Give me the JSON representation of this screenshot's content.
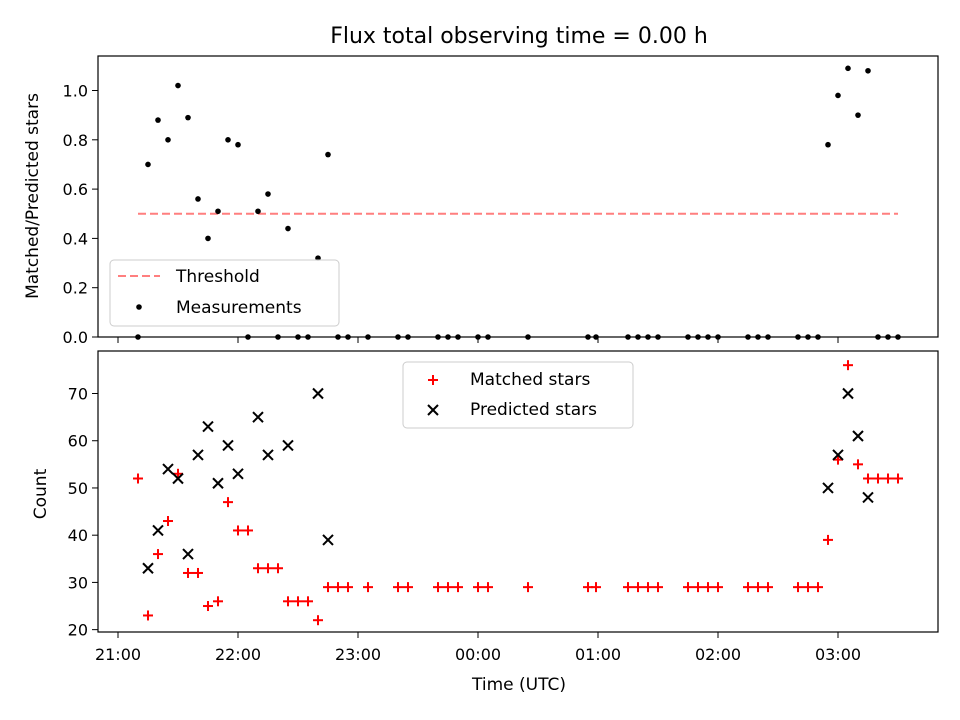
{
  "chart_data": [
    {
      "type": "scatter",
      "title": "Flux total observing time = 0.00 h",
      "xlabel": "",
      "ylabel": "Matched/Predicted stars",
      "ylim": [
        0,
        1.14
      ],
      "yticks": [
        "0.0",
        "0.2",
        "0.4",
        "0.6",
        "0.8",
        "1.0"
      ],
      "grid": false,
      "legend_position": "lower-left",
      "threshold": {
        "name": "Threshold",
        "value": 0.5,
        "x_start": "21:10",
        "x_end": "03:30",
        "color": "#ff7f7f",
        "style": "dashed"
      },
      "series": [
        {
          "name": "Measurements",
          "color": "#000000",
          "marker": "dot",
          "points": [
            [
              "21:10",
              0.0
            ],
            [
              "21:15",
              0.7
            ],
            [
              "21:20",
              0.88
            ],
            [
              "21:25",
              0.8
            ],
            [
              "21:30",
              1.02
            ],
            [
              "21:35",
              0.89
            ],
            [
              "21:40",
              0.56
            ],
            [
              "21:45",
              0.4
            ],
            [
              "21:50",
              0.51
            ],
            [
              "21:55",
              0.8
            ],
            [
              "22:00",
              0.78
            ],
            [
              "22:05",
              0.0
            ],
            [
              "22:10",
              0.51
            ],
            [
              "22:15",
              0.58
            ],
            [
              "22:20",
              0.0
            ],
            [
              "22:25",
              0.44
            ],
            [
              "22:30",
              0.0
            ],
            [
              "22:35",
              0.0
            ],
            [
              "22:40",
              0.32
            ],
            [
              "22:45",
              0.74
            ],
            [
              "22:50",
              0.0
            ],
            [
              "22:55",
              0.0
            ],
            [
              "23:05",
              0.0
            ],
            [
              "23:20",
              0.0
            ],
            [
              "23:25",
              0.0
            ],
            [
              "23:40",
              0.0
            ],
            [
              "23:45",
              0.0
            ],
            [
              "23:50",
              0.0
            ],
            [
              "00:00",
              0.0
            ],
            [
              "00:05",
              0.0
            ],
            [
              "00:25",
              0.0
            ],
            [
              "00:55",
              0.0
            ],
            [
              "00:59",
              0.0
            ],
            [
              "01:15",
              0.0
            ],
            [
              "01:20",
              0.0
            ],
            [
              "01:25",
              0.0
            ],
            [
              "01:30",
              0.0
            ],
            [
              "01:45",
              0.0
            ],
            [
              "01:50",
              0.0
            ],
            [
              "01:55",
              0.0
            ],
            [
              "02:00",
              0.0
            ],
            [
              "02:15",
              0.0
            ],
            [
              "02:20",
              0.0
            ],
            [
              "02:25",
              0.0
            ],
            [
              "02:40",
              0.0
            ],
            [
              "02:45",
              0.0
            ],
            [
              "02:50",
              0.0
            ],
            [
              "02:55",
              0.78
            ],
            [
              "03:00",
              0.98
            ],
            [
              "03:05",
              1.09
            ],
            [
              "03:10",
              0.9
            ],
            [
              "03:15",
              1.08
            ],
            [
              "03:20",
              0.0
            ],
            [
              "03:25",
              0.0
            ],
            [
              "03:30",
              0.0
            ]
          ]
        }
      ]
    },
    {
      "type": "scatter",
      "title": "",
      "xlabel": "Time (UTC)",
      "ylabel": "Count",
      "ylim": [
        19.5,
        79
      ],
      "yticks": [
        "20",
        "30",
        "40",
        "50",
        "60",
        "70"
      ],
      "xticks": [
        "21:00",
        "22:00",
        "23:00",
        "00:00",
        "01:00",
        "02:00",
        "03:00"
      ],
      "grid": false,
      "legend_position": "upper-center",
      "series": [
        {
          "name": "Matched stars",
          "color": "#ff0000",
          "marker": "plus",
          "points": [
            [
              "21:10",
              52
            ],
            [
              "21:15",
              23
            ],
            [
              "21:20",
              36
            ],
            [
              "21:25",
              43
            ],
            [
              "21:30",
              53
            ],
            [
              "21:35",
              32
            ],
            [
              "21:40",
              32
            ],
            [
              "21:45",
              25
            ],
            [
              "21:50",
              26
            ],
            [
              "21:55",
              47
            ],
            [
              "22:00",
              41
            ],
            [
              "22:05",
              41
            ],
            [
              "22:10",
              33
            ],
            [
              "22:15",
              33
            ],
            [
              "22:20",
              33
            ],
            [
              "22:25",
              26
            ],
            [
              "22:30",
              26
            ],
            [
              "22:35",
              26
            ],
            [
              "22:40",
              22
            ],
            [
              "22:45",
              29
            ],
            [
              "22:50",
              29
            ],
            [
              "22:55",
              29
            ],
            [
              "23:05",
              29
            ],
            [
              "23:20",
              29
            ],
            [
              "23:25",
              29
            ],
            [
              "23:40",
              29
            ],
            [
              "23:45",
              29
            ],
            [
              "23:50",
              29
            ],
            [
              "00:00",
              29
            ],
            [
              "00:05",
              29
            ],
            [
              "00:25",
              29
            ],
            [
              "00:55",
              29
            ],
            [
              "00:59",
              29
            ],
            [
              "01:15",
              29
            ],
            [
              "01:20",
              29
            ],
            [
              "01:25",
              29
            ],
            [
              "01:30",
              29
            ],
            [
              "01:45",
              29
            ],
            [
              "01:50",
              29
            ],
            [
              "01:55",
              29
            ],
            [
              "02:00",
              29
            ],
            [
              "02:15",
              29
            ],
            [
              "02:20",
              29
            ],
            [
              "02:25",
              29
            ],
            [
              "02:40",
              29
            ],
            [
              "02:45",
              29
            ],
            [
              "02:50",
              29
            ],
            [
              "02:55",
              39
            ],
            [
              "03:00",
              56
            ],
            [
              "03:05",
              76
            ],
            [
              "03:10",
              55
            ],
            [
              "03:15",
              52
            ],
            [
              "03:20",
              52
            ],
            [
              "03:25",
              52
            ],
            [
              "03:30",
              52
            ]
          ]
        },
        {
          "name": "Predicted stars",
          "color": "#000000",
          "marker": "x",
          "points": [
            [
              "21:15",
              33
            ],
            [
              "21:20",
              41
            ],
            [
              "21:25",
              54
            ],
            [
              "21:30",
              52
            ],
            [
              "21:35",
              36
            ],
            [
              "21:40",
              57
            ],
            [
              "21:45",
              63
            ],
            [
              "21:50",
              51
            ],
            [
              "21:55",
              59
            ],
            [
              "22:00",
              53
            ],
            [
              "22:10",
              65
            ],
            [
              "22:15",
              57
            ],
            [
              "22:25",
              59
            ],
            [
              "22:40",
              70
            ],
            [
              "22:45",
              39
            ],
            [
              "02:55",
              50
            ],
            [
              "03:00",
              57
            ],
            [
              "03:05",
              70
            ],
            [
              "03:10",
              61
            ],
            [
              "03:15",
              48
            ]
          ]
        }
      ]
    }
  ]
}
